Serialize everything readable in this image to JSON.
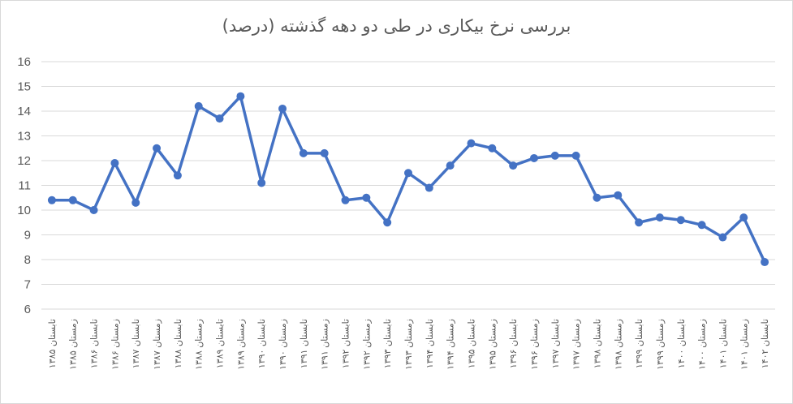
{
  "chart_data": {
    "type": "line",
    "title": "بررسی نرخ بیکاری در طی دو دهه گذشته (درصد)",
    "xlabel": "",
    "ylabel": "",
    "ylim": [
      6,
      16
    ],
    "yticks": [
      6,
      7,
      8,
      9,
      10,
      11,
      12,
      13,
      14,
      15,
      16
    ],
    "grid": true,
    "legend": "none",
    "color": "#4472c4",
    "categories": [
      "تابستان ۱۳۸۵",
      "زمستان ۱۳۸۵",
      "تابستان ۱۳۸۶",
      "زمستان ۱۳۸۶",
      "تابستان ۱۳۸۷",
      "زمستان ۱۳۸۷",
      "تابستان ۱۳۸۸",
      "زمستان ۱۳۸۸",
      "تابستان ۱۳۸۹",
      "زمستان ۱۳۸۹",
      "تابستان ۱۳۹۰",
      "زمستان ۱۳۹۰",
      "تابستان ۱۳۹۱",
      "زمستان ۱۳۹۱",
      "تابستان ۱۳۹۲",
      "زمستان ۱۳۹۲",
      "تابستان ۱۳۹۳",
      "زمستان ۱۳۹۳",
      "تابستان ۱۳۹۴",
      "زمستان ۱۳۹۴",
      "تابستان ۱۳۹۵",
      "زمستان ۱۳۹۵",
      "تابستان ۱۳۹۶",
      "زمستان ۱۳۹۶",
      "تابستان ۱۳۹۷",
      "زمستان ۱۳۹۷",
      "تابستان ۱۳۹۸",
      "زمستان ۱۳۹۸",
      "تابستان ۱۳۹۹",
      "زمستان ۱۳۹۹",
      "تابستان ۱۴۰۰",
      "زمستان ۱۴۰۰",
      "تابستان ۱۴۰۱",
      "زمستان ۱۴۰۱",
      "تابستان ۱۴۰۲"
    ],
    "series": [
      {
        "values": [
          10.4,
          10.4,
          10.0,
          11.9,
          10.3,
          12.5,
          11.4,
          14.2,
          13.7,
          14.6,
          11.1,
          14.1,
          12.3,
          12.3,
          10.4,
          10.5,
          9.5,
          11.5,
          10.9,
          11.8,
          12.7,
          12.5,
          11.8,
          12.1,
          12.2,
          12.2,
          10.5,
          10.6,
          9.5,
          9.7,
          9.6,
          9.4,
          8.9,
          9.7,
          7.9
        ]
      }
    ]
  }
}
